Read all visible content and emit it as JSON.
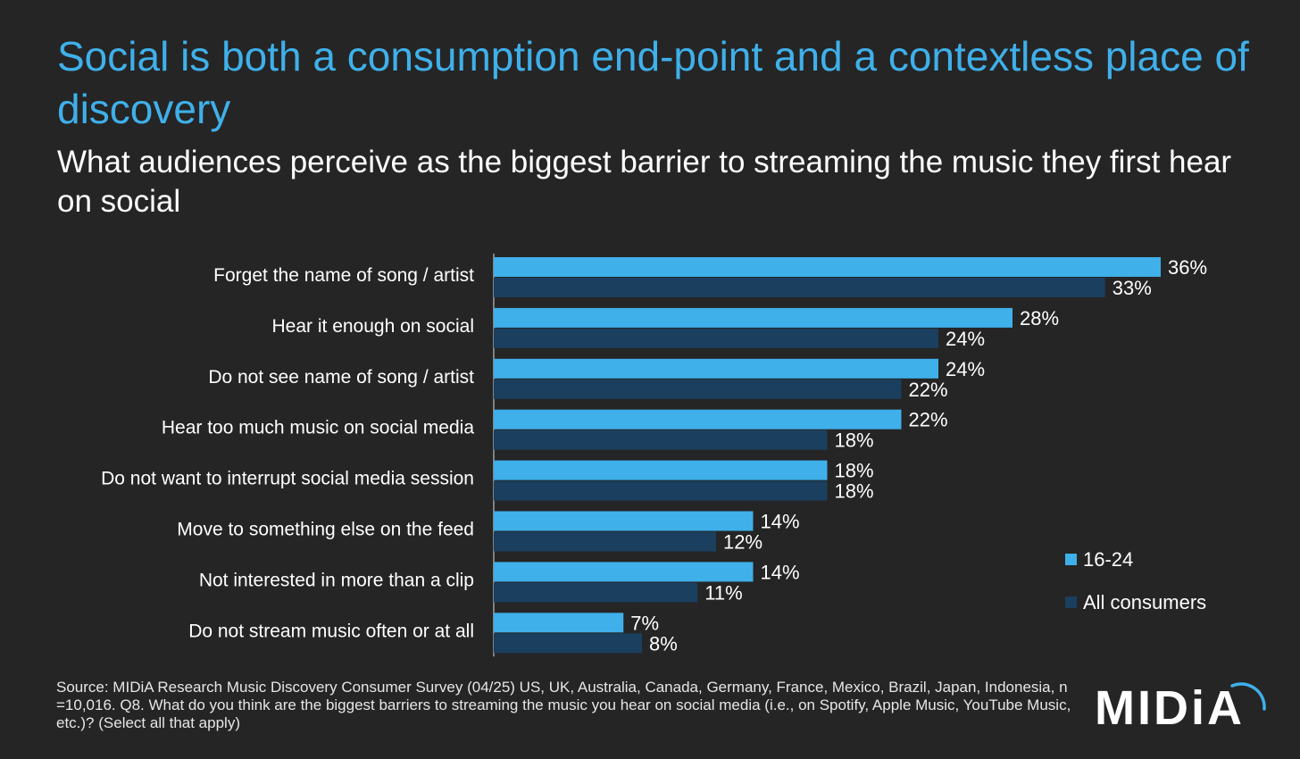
{
  "title": "Social is both a consumption end-point and a contextless place of discovery",
  "subtitle": "What audiences perceive as the biggest barrier to streaming the music they first hear on social",
  "chart_data": {
    "type": "bar",
    "orientation": "horizontal",
    "categories": [
      "Forget the name of song / artist",
      "Hear it enough on social",
      "Do not see name of song / artist",
      "Hear too much music on social media",
      "Do not want to interrupt social media session",
      "Move to something else on the feed",
      "Not interested in more than a clip",
      "Do not stream music often or at all"
    ],
    "series": [
      {
        "name": "16-24",
        "color": "#3fb0ea",
        "values": [
          36,
          28,
          24,
          22,
          18,
          14,
          14,
          7
        ]
      },
      {
        "name": "All consumers",
        "color": "#1b3f5e",
        "values": [
          33,
          24,
          22,
          18,
          18,
          12,
          11,
          8
        ]
      }
    ],
    "value_suffix": "%",
    "xlim": [
      0,
      36
    ],
    "legend_position": "bottom-right"
  },
  "source": "Source: MIDiA Research Music Discovery Consumer Survey (04/25) US, UK, Australia, Canada, Germany, France, Mexico, Brazil, Japan, Indonesia, n =10,016.  Q8. What do you think are the biggest barriers to streaming the music you hear on social media (i.e., on Spotify, Apple Music, YouTube Music, etc.)? (Select all that apply)",
  "logo_text": "MIDiA"
}
